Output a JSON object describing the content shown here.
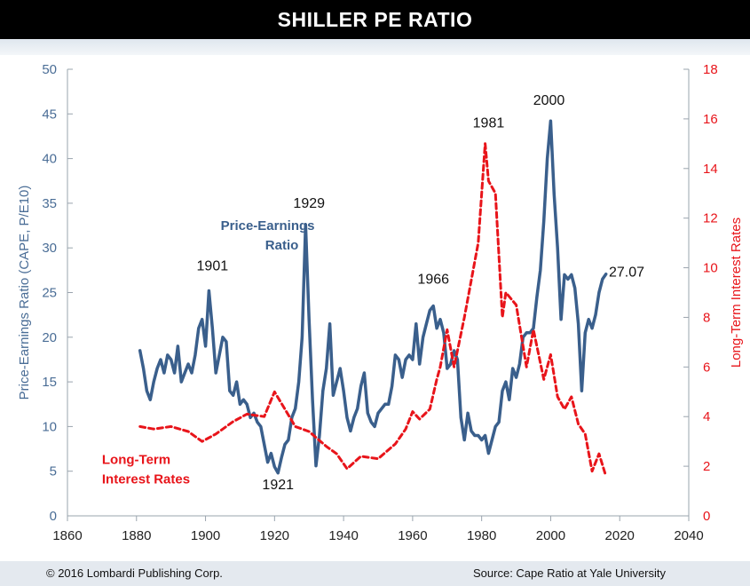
{
  "title": "SHILLER PE RATIO",
  "footer": {
    "copyright": "© 2016 Lombardi Publishing Corp.",
    "source": "Source: Cape Ratio at Yale University"
  },
  "colors": {
    "pe": "#3a5f8c",
    "rates": "#e8141a",
    "left_axis_text": "#4a6d96",
    "right_axis_text": "#e8141a"
  },
  "chart_data": {
    "type": "line",
    "xlim": [
      1860,
      2040
    ],
    "x_ticks": [
      1860,
      1880,
      1900,
      1920,
      1940,
      1960,
      1980,
      2000,
      2020,
      2040
    ],
    "ylabel": "Price-Earnings Ratio (CAPE, P/E10)",
    "ylim": [
      0,
      50
    ],
    "y_ticks": [
      0,
      5,
      10,
      15,
      20,
      25,
      30,
      35,
      40,
      45,
      50
    ],
    "y2label": "Long-Term Interest Rates",
    "y2lim": [
      0,
      18
    ],
    "y2_ticks": [
      0,
      2,
      4,
      6,
      8,
      10,
      12,
      14,
      16,
      18
    ],
    "series": [
      {
        "name": "Price-Earnings Ratio",
        "axis": "left",
        "style": "solid",
        "x": [
          1881,
          1882,
          1883,
          1884,
          1885,
          1886,
          1887,
          1888,
          1889,
          1890,
          1891,
          1892,
          1893,
          1894,
          1895,
          1896,
          1897,
          1898,
          1899,
          1900,
          1901,
          1902,
          1903,
          1904,
          1905,
          1906,
          1907,
          1908,
          1909,
          1910,
          1911,
          1912,
          1913,
          1914,
          1915,
          1916,
          1917,
          1918,
          1919,
          1920,
          1921,
          1922,
          1923,
          1924,
          1925,
          1926,
          1927,
          1928,
          1929,
          1930,
          1931,
          1932,
          1933,
          1934,
          1935,
          1936,
          1937,
          1938,
          1939,
          1940,
          1941,
          1942,
          1943,
          1944,
          1945,
          1946,
          1947,
          1948,
          1949,
          1950,
          1951,
          1952,
          1953,
          1954,
          1955,
          1956,
          1957,
          1958,
          1959,
          1960,
          1961,
          1962,
          1963,
          1964,
          1965,
          1966,
          1967,
          1968,
          1969,
          1970,
          1971,
          1972,
          1973,
          1974,
          1975,
          1976,
          1977,
          1978,
          1979,
          1980,
          1981,
          1982,
          1983,
          1984,
          1985,
          1986,
          1987,
          1988,
          1989,
          1990,
          1991,
          1992,
          1993,
          1994,
          1995,
          1996,
          1997,
          1998,
          1999,
          2000,
          2001,
          2002,
          2003,
          2004,
          2005,
          2006,
          2007,
          2008,
          2009,
          2010,
          2011,
          2012,
          2013,
          2014,
          2015,
          2016
        ],
        "values": [
          18.5,
          16.5,
          14.0,
          13.0,
          15.0,
          16.5,
          17.5,
          16.0,
          18.0,
          17.5,
          16.0,
          19.0,
          15.0,
          16.0,
          17.0,
          16.0,
          18.0,
          21.0,
          22.0,
          19.0,
          25.2,
          21.0,
          16.0,
          18.0,
          20.0,
          19.5,
          14.0,
          13.5,
          15.0,
          12.5,
          13.0,
          12.5,
          11.0,
          11.5,
          10.5,
          10.0,
          8.0,
          6.0,
          7.0,
          5.5,
          4.8,
          6.5,
          8.0,
          8.5,
          11.0,
          12.0,
          15.0,
          20.0,
          32.6,
          22.0,
          13.0,
          5.6,
          9.0,
          14.0,
          16.5,
          21.5,
          13.5,
          15.0,
          16.5,
          14.0,
          11.0,
          9.5,
          11.0,
          12.0,
          14.5,
          16.0,
          11.5,
          10.5,
          10.0,
          11.5,
          12.0,
          12.5,
          12.5,
          14.5,
          18.0,
          17.5,
          15.5,
          17.5,
          18.0,
          17.5,
          21.5,
          17.0,
          20.0,
          21.5,
          23.0,
          23.5,
          21.0,
          22.0,
          20.5,
          16.5,
          17.0,
          18.5,
          17.5,
          11.0,
          8.5,
          11.5,
          9.5,
          9.0,
          9.0,
          8.5,
          9.0,
          7.0,
          8.5,
          10.0,
          10.5,
          14.0,
          15.0,
          13.0,
          16.5,
          15.5,
          17.0,
          20.0,
          20.5,
          20.5,
          21.0,
          24.5,
          27.5,
          33.0,
          40.0,
          44.2,
          36.0,
          30.0,
          22.0,
          27.0,
          26.5,
          27.0,
          25.5,
          21.5,
          14.0,
          20.5,
          22.0,
          21.0,
          22.5,
          25.0,
          26.5,
          27.07
        ]
      },
      {
        "name": "Long-Term Interest Rates",
        "axis": "right",
        "style": "dashed",
        "x": [
          1881,
          1885,
          1890,
          1895,
          1899,
          1903,
          1908,
          1912,
          1917,
          1920,
          1923,
          1926,
          1930,
          1935,
          1938,
          1941,
          1945,
          1950,
          1955,
          1958,
          1960,
          1962,
          1965,
          1967,
          1968,
          1970,
          1972,
          1975,
          1979,
          1981,
          1982,
          1984,
          1986,
          1987,
          1990,
          1993,
          1995,
          1998,
          2000,
          2002,
          2004,
          2006,
          2008,
          2010,
          2012,
          2014,
          2016
        ],
        "values": [
          3.6,
          3.5,
          3.6,
          3.4,
          3.0,
          3.3,
          3.8,
          4.1,
          4.0,
          5.0,
          4.3,
          3.6,
          3.4,
          2.8,
          2.5,
          1.9,
          2.4,
          2.3,
          2.9,
          3.5,
          4.2,
          3.9,
          4.3,
          5.5,
          6.0,
          7.5,
          6.0,
          8.0,
          11.0,
          15.0,
          13.5,
          13.0,
          8.0,
          9.0,
          8.5,
          6.0,
          7.5,
          5.5,
          6.5,
          4.8,
          4.3,
          4.8,
          3.7,
          3.3,
          1.8,
          2.5,
          1.6
        ]
      }
    ],
    "annotations": [
      {
        "text": "1901",
        "x": 1902,
        "y": 27.5
      },
      {
        "text": "1921",
        "x": 1921,
        "y": 3.0
      },
      {
        "text": "1929",
        "x": 1930,
        "y": 34.5
      },
      {
        "text": "1966",
        "x": 1966,
        "y": 26.0
      },
      {
        "text": "1981",
        "x": 1982,
        "y": 43.5
      },
      {
        "text": "2000",
        "x": 1999.5,
        "y": 46.0
      },
      {
        "text": "27.07",
        "x": 2022,
        "y": 26.8
      }
    ],
    "series_labels": [
      {
        "lines": [
          "Price-Earnings",
          "Ratio"
        ],
        "x": 1918,
        "y": 32.0,
        "series": 0
      },
      {
        "lines": [
          "Long-Term",
          "Interest Rates"
        ],
        "x": 1870,
        "y": 5.8,
        "series": 1
      }
    ]
  }
}
